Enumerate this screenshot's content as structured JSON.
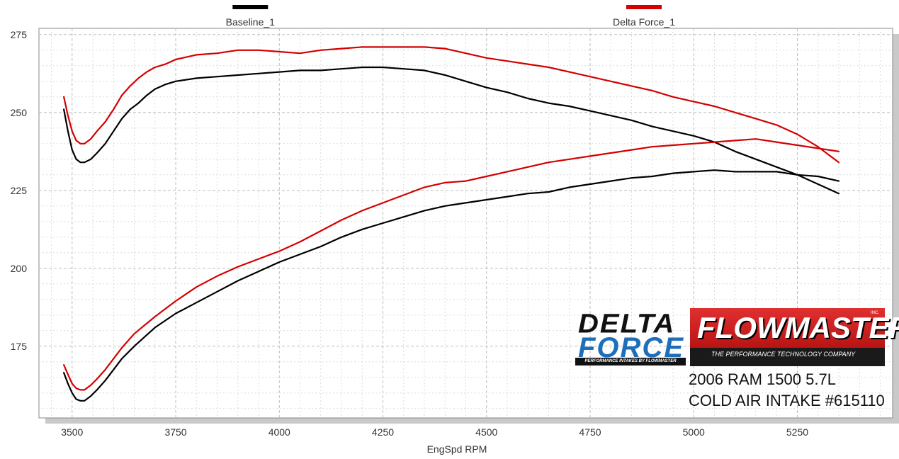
{
  "chart_data": {
    "type": "line",
    "title": "",
    "xlabel": "EngSpd  RPM",
    "ylabel": "",
    "xlim": [
      3420,
      5480
    ],
    "ylim": [
      152,
      277
    ],
    "x_ticks": [
      3500,
      3750,
      4000,
      4250,
      4500,
      4750,
      5000,
      5250
    ],
    "y_ticks": [
      175,
      200,
      225,
      250,
      275
    ],
    "grid": true,
    "legend": [
      {
        "name": "Baseline_1",
        "color": "#000000"
      },
      {
        "name": "Delta Force_1",
        "color": "#d40000"
      }
    ],
    "series": [
      {
        "name": "Baseline_1",
        "kind": "upper",
        "color": "#000000",
        "x": [
          3480,
          3490,
          3500,
          3510,
          3520,
          3530,
          3545,
          3560,
          3580,
          3600,
          3620,
          3640,
          3660,
          3680,
          3700,
          3725,
          3750,
          3800,
          3850,
          3900,
          3950,
          4000,
          4050,
          4100,
          4150,
          4200,
          4250,
          4300,
          4350,
          4400,
          4450,
          4500,
          4550,
          4600,
          4650,
          4700,
          4750,
          4800,
          4850,
          4900,
          4950,
          5000,
          5050,
          5100,
          5150,
          5200,
          5250,
          5300,
          5350
        ],
        "y": [
          251,
          244,
          238,
          235,
          234,
          234,
          235,
          237,
          240,
          244,
          248,
          251,
          253,
          255.5,
          257.5,
          259,
          260,
          261,
          261.5,
          262,
          262.5,
          263,
          263.5,
          263.5,
          264,
          264.5,
          264.5,
          264,
          263.5,
          262,
          260,
          258,
          256.5,
          254.5,
          253,
          252,
          250.5,
          249,
          247.5,
          245.5,
          244,
          242.5,
          240.5,
          237.5,
          235,
          232.5,
          230,
          227,
          224
        ]
      },
      {
        "name": "Baseline_1",
        "kind": "lower",
        "color": "#000000",
        "x": [
          3480,
          3490,
          3500,
          3510,
          3520,
          3530,
          3545,
          3560,
          3580,
          3600,
          3620,
          3650,
          3700,
          3750,
          3800,
          3850,
          3900,
          3950,
          4000,
          4050,
          4100,
          4150,
          4200,
          4250,
          4300,
          4350,
          4400,
          4450,
          4500,
          4550,
          4600,
          4650,
          4700,
          4750,
          4800,
          4850,
          4900,
          4950,
          5000,
          5050,
          5100,
          5150,
          5200,
          5250,
          5300,
          5350
        ],
        "y": [
          166.5,
          163,
          160,
          158,
          157.5,
          157.5,
          159,
          161,
          164,
          167.5,
          171,
          175,
          181,
          185.5,
          189,
          192.5,
          196,
          199,
          202,
          204.5,
          207,
          210,
          212.5,
          214.5,
          216.5,
          218.5,
          220,
          221,
          222,
          223,
          224,
          224.5,
          226,
          227,
          228,
          229,
          229.5,
          230.5,
          231,
          231.5,
          231,
          231,
          231,
          230,
          229.5,
          228
        ]
      },
      {
        "name": "Delta Force_1",
        "kind": "upper",
        "color": "#d40000",
        "x": [
          3480,
          3490,
          3500,
          3510,
          3520,
          3530,
          3545,
          3560,
          3580,
          3600,
          3620,
          3640,
          3660,
          3680,
          3700,
          3725,
          3750,
          3800,
          3850,
          3900,
          3950,
          4000,
          4050,
          4100,
          4150,
          4200,
          4250,
          4300,
          4350,
          4400,
          4450,
          4500,
          4550,
          4600,
          4650,
          4700,
          4750,
          4800,
          4850,
          4900,
          4950,
          5000,
          5050,
          5100,
          5150,
          5200,
          5250,
          5300,
          5350
        ],
        "y": [
          255,
          249,
          244,
          241,
          240,
          240,
          241.5,
          244,
          247,
          251,
          255.5,
          258.5,
          261,
          263,
          264.5,
          265.5,
          267,
          268.5,
          269,
          270,
          270,
          269.5,
          269,
          270,
          270.5,
          271,
          271,
          271,
          271,
          270.5,
          269,
          267.5,
          266.5,
          265.5,
          264.5,
          263,
          261.5,
          260,
          258.5,
          257,
          255,
          253.5,
          252,
          250,
          248,
          246,
          243,
          239,
          234
        ]
      },
      {
        "name": "Delta Force_1",
        "kind": "lower",
        "color": "#d40000",
        "x": [
          3480,
          3490,
          3500,
          3510,
          3520,
          3530,
          3545,
          3560,
          3580,
          3600,
          3620,
          3650,
          3700,
          3750,
          3800,
          3850,
          3900,
          3950,
          4000,
          4050,
          4100,
          4150,
          4200,
          4250,
          4300,
          4350,
          4400,
          4450,
          4500,
          4550,
          4600,
          4650,
          4700,
          4750,
          4800,
          4850,
          4900,
          4950,
          5000,
          5050,
          5100,
          5150,
          5200,
          5250,
          5300,
          5350
        ],
        "y": [
          169,
          166,
          163,
          161.5,
          161,
          161,
          162.5,
          164.5,
          167.5,
          171,
          174.5,
          179,
          184.5,
          189.5,
          194,
          197.5,
          200.5,
          203,
          205.5,
          208.5,
          212,
          215.5,
          218.5,
          221,
          223.5,
          226,
          227.5,
          228,
          229.5,
          231,
          232.5,
          234,
          235,
          236,
          237,
          238,
          239,
          239.5,
          240,
          240.5,
          241,
          241.5,
          240.5,
          239.5,
          238.5,
          237.5
        ]
      }
    ]
  },
  "branding": {
    "delta_force_line1": "DELTA",
    "delta_force_line2": "FORCE",
    "delta_force_tagline": "PERFORMANCE INTAKES BY FLOWMASTER",
    "flowmaster_name": "FLOWMASTER",
    "flowmaster_inc": "INC.",
    "flowmaster_tagline": "THE PERFORMANCE TECHNOLOGY COMPANY",
    "vehicle": "2006 RAM 1500 5.7L",
    "product": "COLD AIR INTAKE #615110"
  }
}
